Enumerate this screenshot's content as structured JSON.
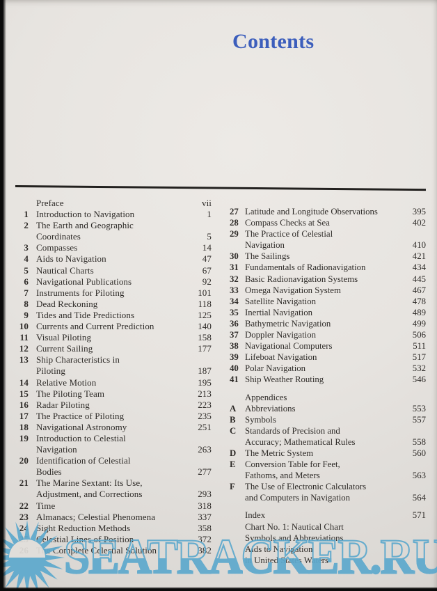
{
  "page": {
    "title": "Contents"
  },
  "colors": {
    "ink": "#2e2b28",
    "accent_blue": "#3c5ebc",
    "watermark_blue": "#5ea9cd",
    "paper": "#e2dfdb"
  },
  "watermark": {
    "text": "SEATRACKER.RU",
    "icon": "sunburst-icon"
  },
  "toc": {
    "left": [
      {
        "num": "",
        "title": "Preface",
        "page": "vii"
      },
      {
        "num": "1",
        "title": "Introduction to Navigation",
        "page": "1"
      },
      {
        "num": "2",
        "title": "The Earth and Geographic\nCoordinates",
        "page": "5"
      },
      {
        "num": "3",
        "title": "Compasses",
        "page": "14"
      },
      {
        "num": "4",
        "title": "Aids to Navigation",
        "page": "47"
      },
      {
        "num": "5",
        "title": "Nautical Charts",
        "page": "67"
      },
      {
        "num": "6",
        "title": "Navigational Publications",
        "page": "92"
      },
      {
        "num": "7",
        "title": "Instruments for Piloting",
        "page": "101"
      },
      {
        "num": "8",
        "title": "Dead Reckoning",
        "page": "118"
      },
      {
        "num": "9",
        "title": "Tides and Tide Predictions",
        "page": "125"
      },
      {
        "num": "10",
        "title": "Currents and Current Prediction",
        "page": "140"
      },
      {
        "num": "11",
        "title": "Visual Piloting",
        "page": "158"
      },
      {
        "num": "12",
        "title": "Current Sailing",
        "page": "177"
      },
      {
        "num": "13",
        "title": "Ship Characteristics in\nPiloting",
        "page": "187"
      },
      {
        "num": "14",
        "title": "Relative Motion",
        "page": "195"
      },
      {
        "num": "15",
        "title": "The Piloting Team",
        "page": "213"
      },
      {
        "num": "16",
        "title": "Radar Piloting",
        "page": "223"
      },
      {
        "num": "17",
        "title": "The Practice of Piloting",
        "page": "235"
      },
      {
        "num": "18",
        "title": "Navigational Astronomy",
        "page": "251"
      },
      {
        "num": "19",
        "title": "Introduction to Celestial\nNavigation",
        "page": "263"
      },
      {
        "num": "20",
        "title": "Identification of Celestial\nBodies",
        "page": "277"
      },
      {
        "num": "21",
        "title": "The Marine Sextant: Its Use,\nAdjustment, and Corrections",
        "page": "293"
      },
      {
        "num": "22",
        "title": "Time",
        "page": "318"
      },
      {
        "num": "23",
        "title": "Almanacs; Celestial Phenomena",
        "page": "337"
      },
      {
        "num": "24",
        "title": "Sight Reduction Methods",
        "page": "358"
      },
      {
        "num": "25",
        "title": "Celestial Lines of Position",
        "page": "372"
      },
      {
        "num": "26",
        "title": "The Complete Celestial Solution",
        "page": "382"
      }
    ],
    "right": [
      {
        "num": "27",
        "title": "Latitude and Longitude Observations",
        "page": "395"
      },
      {
        "num": "28",
        "title": "Compass Checks at Sea",
        "page": "402"
      },
      {
        "num": "29",
        "title": "The Practice of Celestial\nNavigation",
        "page": "410"
      },
      {
        "num": "30",
        "title": "The Sailings",
        "page": "421"
      },
      {
        "num": "31",
        "title": "Fundamentals of Radionavigation",
        "page": "434"
      },
      {
        "num": "32",
        "title": "Basic Radionavigation Systems",
        "page": "445"
      },
      {
        "num": "33",
        "title": "Omega Navigation System",
        "page": "467"
      },
      {
        "num": "34",
        "title": "Satellite Navigation",
        "page": "478"
      },
      {
        "num": "35",
        "title": "Inertial Navigation",
        "page": "489"
      },
      {
        "num": "36",
        "title": "Bathymetric Navigation",
        "page": "499"
      },
      {
        "num": "37",
        "title": "Doppler Navigation",
        "page": "506"
      },
      {
        "num": "38",
        "title": "Navigational Computers",
        "page": "511"
      },
      {
        "num": "39",
        "title": "Lifeboat Navigation",
        "page": "517"
      },
      {
        "num": "40",
        "title": "Polar Navigation",
        "page": "532"
      },
      {
        "num": "41",
        "title": "Ship Weather Routing",
        "page": "546"
      },
      {
        "num": "",
        "title": "Appendices",
        "page": "",
        "gap_before": true
      },
      {
        "num": "A",
        "title": "Abbreviations",
        "page": "553"
      },
      {
        "num": "B",
        "title": "Symbols",
        "page": "557"
      },
      {
        "num": "C",
        "title": "Standards of Precision and\nAccuracy; Mathematical Rules",
        "page": "558"
      },
      {
        "num": "D",
        "title": "The Metric System",
        "page": "560"
      },
      {
        "num": "E",
        "title": "Conversion Table for Feet,\nFathoms, and Meters",
        "page": "563"
      },
      {
        "num": "F",
        "title": "The Use of Electronic Calculators\nand Computers in Navigation",
        "page": "564"
      },
      {
        "num": "",
        "title": "Index",
        "page": "571",
        "gap_before": true
      },
      {
        "num": "",
        "title": "Chart No. 1: Nautical Chart\nSymbols and Abbreviations\nAids to Navigation\nin United States Waters",
        "page": ""
      }
    ]
  }
}
